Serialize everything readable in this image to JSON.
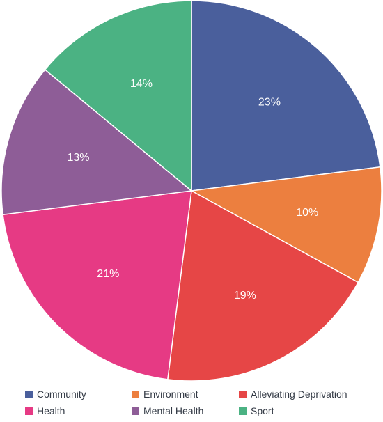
{
  "chart_data": {
    "type": "pie",
    "title": "",
    "slices": [
      {
        "label": "Community",
        "value": 23,
        "display": "23%",
        "color": "#4a5f9c"
      },
      {
        "label": "Environment",
        "value": 10,
        "display": "10%",
        "color": "#ec7f3f"
      },
      {
        "label": "Alleviating Deprivation",
        "value": 19,
        "display": "19%",
        "color": "#e64646"
      },
      {
        "label": "Health",
        "value": 21,
        "display": "21%",
        "color": "#e63a84"
      },
      {
        "label": "Mental Health",
        "value": 13,
        "display": "13%",
        "color": "#8e5d97"
      },
      {
        "label": "Sport",
        "value": 14,
        "display": "14%",
        "color": "#4bb283"
      }
    ],
    "legend_placement": "bottom",
    "start_angle": "top",
    "direction": "clockwise"
  },
  "legend": {
    "items": [
      {
        "label": "Community",
        "color": "#4a5f9c"
      },
      {
        "label": "Environment",
        "color": "#ec7f3f"
      },
      {
        "label": "Alleviating Deprivation",
        "color": "#e64646"
      },
      {
        "label": "Health",
        "color": "#e63a84"
      },
      {
        "label": "Mental Health",
        "color": "#8e5d97"
      },
      {
        "label": "Sport",
        "color": "#4bb283"
      }
    ]
  }
}
